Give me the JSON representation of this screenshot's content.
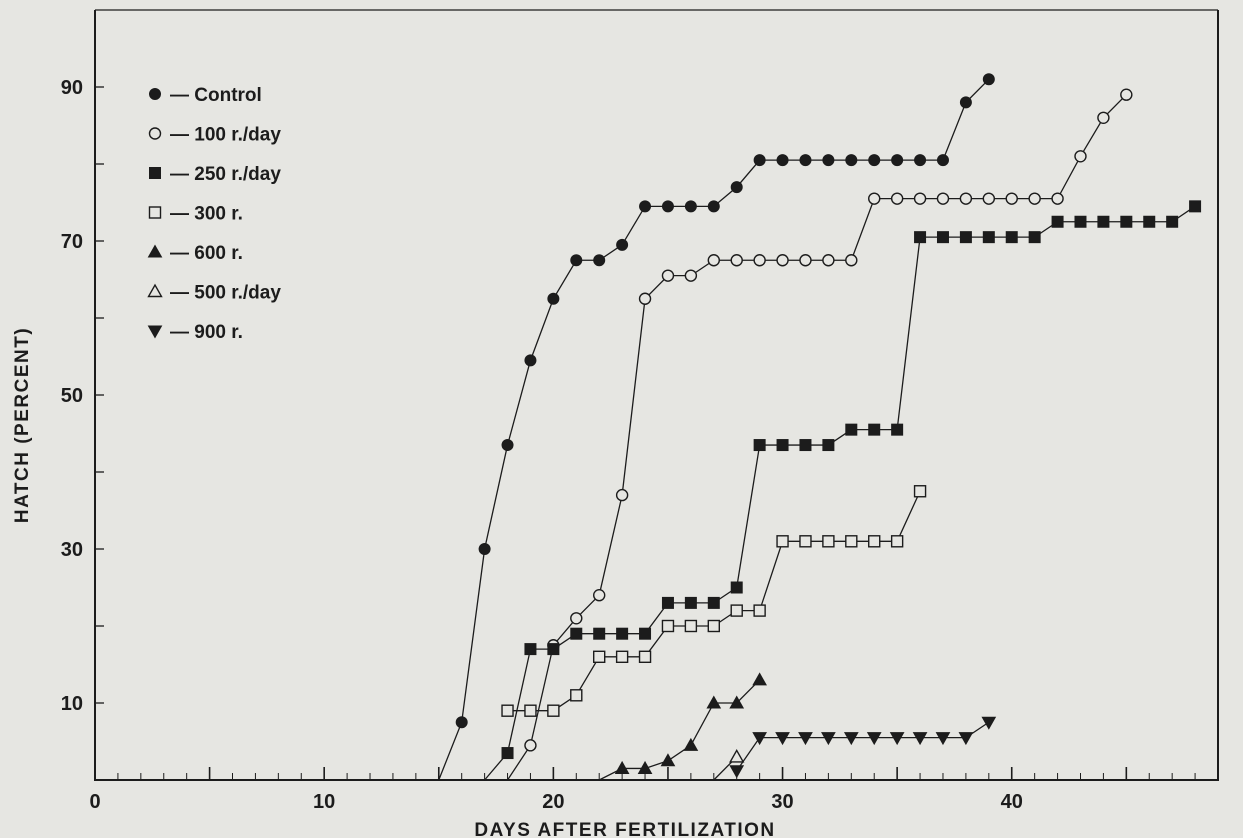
{
  "chart_data": {
    "type": "line",
    "title": "",
    "xlabel": "DAYS AFTER FERTILIZATION",
    "ylabel": "HATCH (PERCENT)",
    "xlim": [
      0,
      49
    ],
    "ylim": [
      0,
      100
    ],
    "x_ticks": [
      0,
      10,
      20,
      30,
      40
    ],
    "y_ticks": [
      10,
      30,
      50,
      70,
      90
    ],
    "grid": false,
    "legend_position": "top-left",
    "series": [
      {
        "name": "— Control",
        "marker": "filled-circle",
        "points": [
          [
            15,
            0
          ],
          [
            16,
            7.5
          ],
          [
            17,
            30
          ],
          [
            18,
            43.5
          ],
          [
            19,
            54.5
          ],
          [
            20,
            62.5
          ],
          [
            21,
            67.5
          ],
          [
            22,
            67.5
          ],
          [
            23,
            69.5
          ],
          [
            24,
            74.5
          ],
          [
            25,
            74.5
          ],
          [
            26,
            74.5
          ],
          [
            27,
            74.5
          ],
          [
            28,
            77
          ],
          [
            29,
            80.5
          ],
          [
            30,
            80.5
          ],
          [
            31,
            80.5
          ],
          [
            32,
            80.5
          ],
          [
            33,
            80.5
          ],
          [
            34,
            80.5
          ],
          [
            35,
            80.5
          ],
          [
            36,
            80.5
          ],
          [
            37,
            80.5
          ],
          [
            38,
            88
          ],
          [
            39,
            91
          ]
        ]
      },
      {
        "name": "— 100 r./day",
        "marker": "open-circle",
        "points": [
          [
            17,
            0
          ],
          [
            18,
            0
          ],
          [
            19,
            4.5
          ],
          [
            20,
            17.5
          ],
          [
            21,
            21
          ],
          [
            22,
            24
          ],
          [
            23,
            37
          ],
          [
            24,
            62.5
          ],
          [
            25,
            65.5
          ],
          [
            26,
            65.5
          ],
          [
            27,
            67.5
          ],
          [
            28,
            67.5
          ],
          [
            29,
            67.5
          ],
          [
            30,
            67.5
          ],
          [
            31,
            67.5
          ],
          [
            32,
            67.5
          ],
          [
            33,
            67.5
          ],
          [
            34,
            75.5
          ],
          [
            35,
            75.5
          ],
          [
            36,
            75.5
          ],
          [
            37,
            75.5
          ],
          [
            38,
            75.5
          ],
          [
            39,
            75.5
          ],
          [
            40,
            75.5
          ],
          [
            41,
            75.5
          ],
          [
            42,
            75.5
          ],
          [
            43,
            81
          ],
          [
            44,
            86
          ],
          [
            45,
            89
          ]
        ]
      },
      {
        "name": "— 250 r./day",
        "marker": "filled-square",
        "points": [
          [
            17,
            0
          ],
          [
            18,
            3.5
          ],
          [
            19,
            17
          ],
          [
            20,
            17
          ],
          [
            21,
            19
          ],
          [
            22,
            19
          ],
          [
            23,
            19
          ],
          [
            24,
            19
          ],
          [
            25,
            23
          ],
          [
            26,
            23
          ],
          [
            27,
            23
          ],
          [
            28,
            25
          ],
          [
            29,
            43.5
          ],
          [
            30,
            43.5
          ],
          [
            31,
            43.5
          ],
          [
            32,
            43.5
          ],
          [
            33,
            45.5
          ],
          [
            34,
            45.5
          ],
          [
            35,
            45.5
          ],
          [
            36,
            70.5
          ],
          [
            37,
            70.5
          ],
          [
            38,
            70.5
          ],
          [
            39,
            70.5
          ],
          [
            40,
            70.5
          ],
          [
            41,
            70.5
          ],
          [
            42,
            72.5
          ],
          [
            43,
            72.5
          ],
          [
            44,
            72.5
          ],
          [
            45,
            72.5
          ],
          [
            46,
            72.5
          ],
          [
            47,
            72.5
          ],
          [
            48,
            74.5
          ]
        ]
      },
      {
        "name": "— 300 r.",
        "marker": "open-square",
        "points": [
          [
            18,
            9
          ],
          [
            19,
            9
          ],
          [
            20,
            9
          ],
          [
            21,
            11
          ],
          [
            22,
            16
          ],
          [
            23,
            16
          ],
          [
            24,
            16
          ],
          [
            25,
            20
          ],
          [
            26,
            20
          ],
          [
            27,
            20
          ],
          [
            28,
            22
          ],
          [
            29,
            22
          ],
          [
            30,
            31
          ],
          [
            31,
            31
          ],
          [
            32,
            31
          ],
          [
            33,
            31
          ],
          [
            34,
            31
          ],
          [
            35,
            31
          ],
          [
            36,
            37.5
          ]
        ]
      },
      {
        "name": "— 600 r.",
        "marker": "filled-triangle",
        "points": [
          [
            22,
            0
          ],
          [
            23,
            1.5
          ],
          [
            24,
            1.5
          ],
          [
            25,
            2.5
          ],
          [
            26,
            4.5
          ],
          [
            27,
            10
          ],
          [
            28,
            10
          ],
          [
            29,
            13
          ]
        ]
      },
      {
        "name": "— 500 r./day",
        "marker": "open-triangle",
        "points": [
          [
            27,
            0
          ],
          [
            28,
            3
          ]
        ]
      },
      {
        "name": "— 900 r.",
        "marker": "filled-down-triangle",
        "points": [
          [
            28,
            1.2
          ],
          [
            29,
            5.5
          ],
          [
            30,
            5.5
          ],
          [
            31,
            5.5
          ],
          [
            32,
            5.5
          ],
          [
            33,
            5.5
          ],
          [
            34,
            5.5
          ],
          [
            35,
            5.5
          ],
          [
            36,
            5.5
          ],
          [
            37,
            5.5
          ],
          [
            38,
            5.5
          ],
          [
            39,
            7.5
          ]
        ]
      }
    ]
  }
}
